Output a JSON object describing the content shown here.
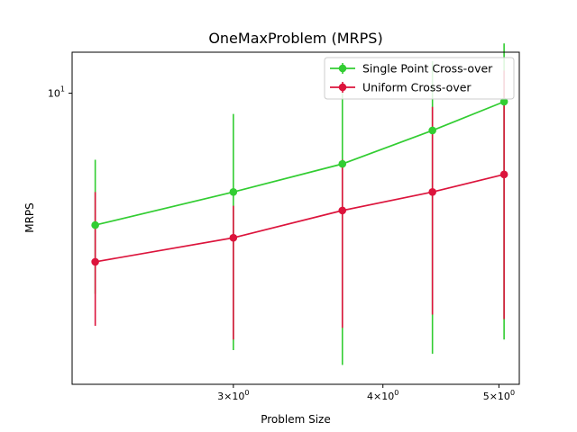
{
  "chart_data": {
    "type": "line",
    "title": "OneMaxProblem (MRPS)",
    "xlabel": "Problem Size",
    "ylabel": "MRPS",
    "xscale": "log",
    "yscale": "log",
    "xlim": [
      2.2,
      5.2
    ],
    "ylim": [
      4.2,
      11.3
    ],
    "x": [
      2.3,
      3.0,
      3.7,
      4.4,
      5.05
    ],
    "x_ticks": [
      {
        "value": 3,
        "label": "3×10",
        "exp": "0"
      },
      {
        "value": 4,
        "label": "4×10",
        "exp": "0"
      },
      {
        "value": 5,
        "label": "5×10",
        "exp": "0"
      }
    ],
    "y_ticks": [
      {
        "value": 10,
        "label": "10",
        "exp": "1"
      }
    ],
    "legend_position": "upper-right",
    "grid": false,
    "series": [
      {
        "name": "Single Point Cross-over",
        "color": "#32cd32",
        "marker": "circle",
        "values": [
          6.75,
          7.45,
          8.1,
          8.95,
          9.75
        ],
        "err_low": [
          5.5,
          4.65,
          4.45,
          4.6,
          4.8
        ],
        "err_high": [
          8.2,
          9.4,
          10.05,
          11.0,
          11.6
        ]
      },
      {
        "name": "Uniform Cross-over",
        "color": "#dc143c",
        "marker": "circle",
        "values": [
          6.05,
          6.5,
          7.05,
          7.45,
          7.85
        ],
        "err_low": [
          5.0,
          4.8,
          4.97,
          5.17,
          5.1
        ],
        "err_high": [
          7.45,
          7.15,
          8.2,
          9.6,
          10.7
        ]
      }
    ]
  }
}
